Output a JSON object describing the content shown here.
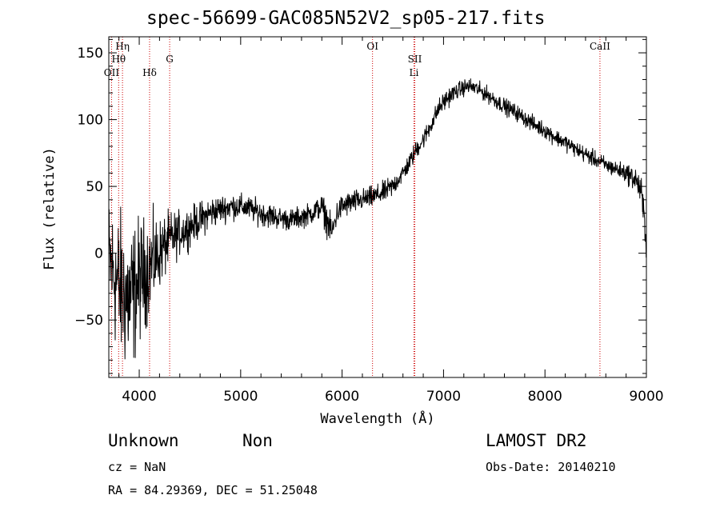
{
  "chart_data": {
    "type": "line",
    "title": "spec-56699-GAC085N52V2_sp05-217.fits",
    "xlabel": "Wavelength (Å)",
    "ylabel": "Flux (relative)",
    "xlim": [
      3700,
      9000
    ],
    "ylim": [
      -93,
      162
    ],
    "xticks": [
      4000,
      5000,
      6000,
      7000,
      8000,
      9000
    ],
    "xtick_labels": [
      "4000",
      "5000",
      "6000",
      "7000",
      "8000",
      "9000"
    ],
    "yticks": [
      -50,
      0,
      50,
      100,
      150
    ],
    "ytick_labels": [
      "−50",
      "0",
      "50",
      "100",
      "150"
    ],
    "grid": false,
    "line_color": "#000000",
    "marker_color": "#cc0000",
    "lines": [
      {
        "name": "OII",
        "label": "OII",
        "x": 3727,
        "row": 2
      },
      {
        "name": "H-eta",
        "label": "Hη",
        "x": 3835,
        "row": 0
      },
      {
        "name": "H-theta",
        "label": "Hθ",
        "x": 3797,
        "row": 1
      },
      {
        "name": "H-delta",
        "label": "Hδ",
        "x": 4102,
        "row": 2
      },
      {
        "name": "G",
        "label": "G",
        "x": 4300,
        "row": 1
      },
      {
        "name": "OI",
        "label": "OI",
        "x": 6300,
        "row": 0
      },
      {
        "name": "SII",
        "label": "SII",
        "x": 6717,
        "row": 1
      },
      {
        "name": "Li",
        "label": "Li",
        "x": 6708,
        "row": 2
      },
      {
        "name": "CaII",
        "label": "CaII",
        "x": 8542,
        "row": 0
      }
    ],
    "series": [
      {
        "name": "spectrum",
        "x": [
          3700,
          3750,
          3800,
          3850,
          3900,
          3950,
          4000,
          4050,
          4100,
          4150,
          4200,
          4300,
          4400,
          4500,
          4600,
          4700,
          4800,
          4900,
          5000,
          5100,
          5200,
          5300,
          5400,
          5500,
          5600,
          5700,
          5800,
          5850,
          5900,
          5950,
          6000,
          6100,
          6200,
          6300,
          6400,
          6500,
          6550,
          6600,
          6650,
          6700,
          6750,
          6800,
          6850,
          6900,
          6950,
          7000,
          7050,
          7100,
          7150,
          7200,
          7250,
          7300,
          7350,
          7400,
          7450,
          7500,
          7600,
          7700,
          7800,
          7900,
          8000,
          8100,
          8200,
          8300,
          8400,
          8500,
          8600,
          8700,
          8800,
          8900,
          8950,
          9000
        ],
        "y": [
          -5,
          -15,
          -25,
          -30,
          -35,
          -30,
          -20,
          -15,
          -10,
          -5,
          0,
          10,
          15,
          20,
          25,
          30,
          33,
          35,
          35,
          33,
          30,
          28,
          26,
          25,
          27,
          30,
          35,
          25,
          15,
          30,
          35,
          38,
          40,
          42,
          45,
          50,
          55,
          60,
          66,
          73,
          80,
          85,
          92,
          100,
          108,
          113,
          117,
          120,
          122,
          124,
          125,
          124,
          122,
          120,
          118,
          115,
          110,
          106,
          101,
          96,
          92,
          87,
          83,
          78,
          74,
          70,
          66,
          63,
          60,
          55,
          45,
          10
        ],
        "noise": [
          45,
          50,
          55,
          55,
          55,
          50,
          45,
          40,
          35,
          32,
          25,
          20,
          16,
          14,
          13,
          12,
          10,
          10,
          9,
          9,
          9,
          9,
          8,
          8,
          8,
          8,
          9,
          12,
          10,
          9,
          9,
          9,
          8,
          8,
          8,
          8,
          7,
          7,
          7,
          7,
          7,
          7,
          7,
          7,
          7,
          7,
          7,
          6,
          6,
          6,
          6,
          6,
          6,
          6,
          6,
          6,
          6,
          6,
          6,
          6,
          6,
          6,
          6,
          6,
          6,
          6,
          6,
          6,
          7,
          9,
          12,
          15
        ]
      }
    ]
  },
  "footer": {
    "class_label": "Unknown",
    "subclass_label": "Non",
    "survey_label": "LAMOST DR2",
    "cz_text": "cz = NaN",
    "obs_date_text": "Obs-Date: 20140210",
    "coords_text": "RA =  84.29369, DEC =  51.25048"
  }
}
